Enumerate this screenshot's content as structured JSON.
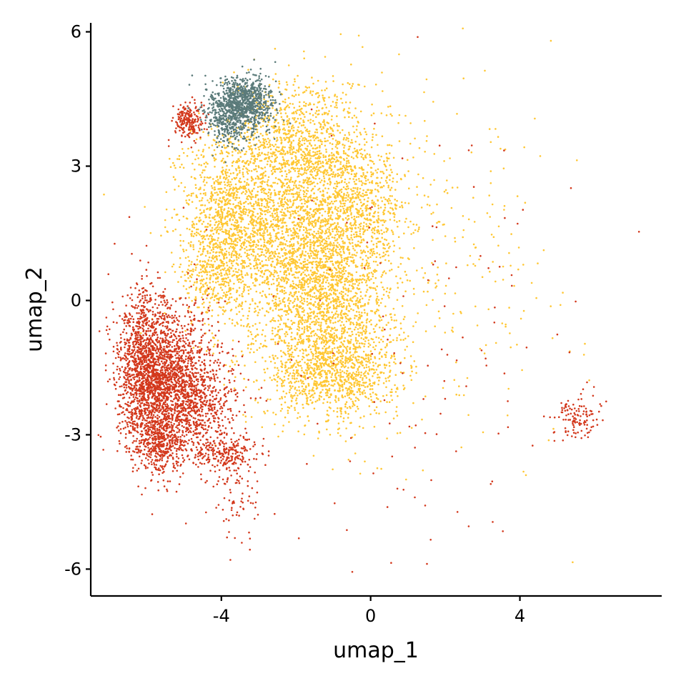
{
  "chart_data": {
    "type": "scatter",
    "title": "",
    "xlabel": "umap_1",
    "ylabel": "umap_2",
    "xlim": [
      -7.5,
      7.8
    ],
    "ylim": [
      -6.6,
      6.2
    ],
    "xticks": [
      {
        "value": -4,
        "label": "-4"
      },
      {
        "value": 0,
        "label": "0"
      },
      {
        "value": 4,
        "label": "4"
      }
    ],
    "yticks": [
      {
        "value": -6,
        "label": "-6"
      },
      {
        "value": -3,
        "label": "-3"
      },
      {
        "value": 0,
        "label": "0"
      },
      {
        "value": 3,
        "label": "3"
      },
      {
        "value": 6,
        "label": "6"
      }
    ],
    "grid": false,
    "legend": "none",
    "series": [
      {
        "color": "#ffc733",
        "clusters": [
          {
            "cx": -2.3,
            "cy": 1.8,
            "sx": 1.2,
            "sy": 1.2,
            "n": 2200
          },
          {
            "cx": -1.2,
            "cy": 0.0,
            "sx": 0.9,
            "sy": 1.1,
            "n": 1800
          },
          {
            "cx": -1.0,
            "cy": -1.6,
            "sx": 0.9,
            "sy": 0.5,
            "n": 900
          },
          {
            "cx": -3.8,
            "cy": 2.0,
            "sx": 0.6,
            "sy": 0.9,
            "n": 700
          },
          {
            "cx": -1.8,
            "cy": 3.6,
            "sx": 0.9,
            "sy": 0.7,
            "n": 700
          },
          {
            "cx": -0.2,
            "cy": 2.2,
            "sx": 0.6,
            "sy": 0.7,
            "n": 500
          },
          {
            "cx": -4.2,
            "cy": 0.6,
            "sx": 0.4,
            "sy": 0.5,
            "n": 300
          },
          {
            "cx": 2.0,
            "cy": 1.0,
            "sx": 1.8,
            "sy": 2.2,
            "n": 260
          }
        ]
      },
      {
        "color": "#d3381c",
        "clusters": [
          {
            "cx": -6.0,
            "cy": -1.6,
            "sx": 0.4,
            "sy": 0.9,
            "n": 1400
          },
          {
            "cx": -5.2,
            "cy": -1.8,
            "sx": 0.6,
            "sy": 0.8,
            "n": 1400
          },
          {
            "cx": -5.6,
            "cy": -3.2,
            "sx": 0.3,
            "sy": 0.3,
            "n": 300
          },
          {
            "cx": -4.0,
            "cy": -3.4,
            "sx": 0.5,
            "sy": 0.2,
            "n": 250
          },
          {
            "cx": -4.6,
            "cy": -2.4,
            "sx": 0.6,
            "sy": 0.4,
            "n": 300
          },
          {
            "cx": -3.6,
            "cy": -4.4,
            "sx": 0.4,
            "sy": 0.5,
            "n": 80
          },
          {
            "cx": -4.9,
            "cy": 4.0,
            "sx": 0.2,
            "sy": 0.2,
            "n": 200
          },
          {
            "cx": 5.5,
            "cy": -2.6,
            "sx": 0.3,
            "sy": 0.25,
            "n": 120
          },
          {
            "cx": 1.5,
            "cy": -1.0,
            "sx": 2.5,
            "sy": 2.5,
            "n": 120
          }
        ]
      },
      {
        "color": "#5b7b7a",
        "clusters": [
          {
            "cx": -3.4,
            "cy": 4.4,
            "sx": 0.4,
            "sy": 0.3,
            "n": 900
          },
          {
            "cx": -3.8,
            "cy": 4.0,
            "sx": 0.3,
            "sy": 0.3,
            "n": 300
          }
        ]
      }
    ]
  }
}
